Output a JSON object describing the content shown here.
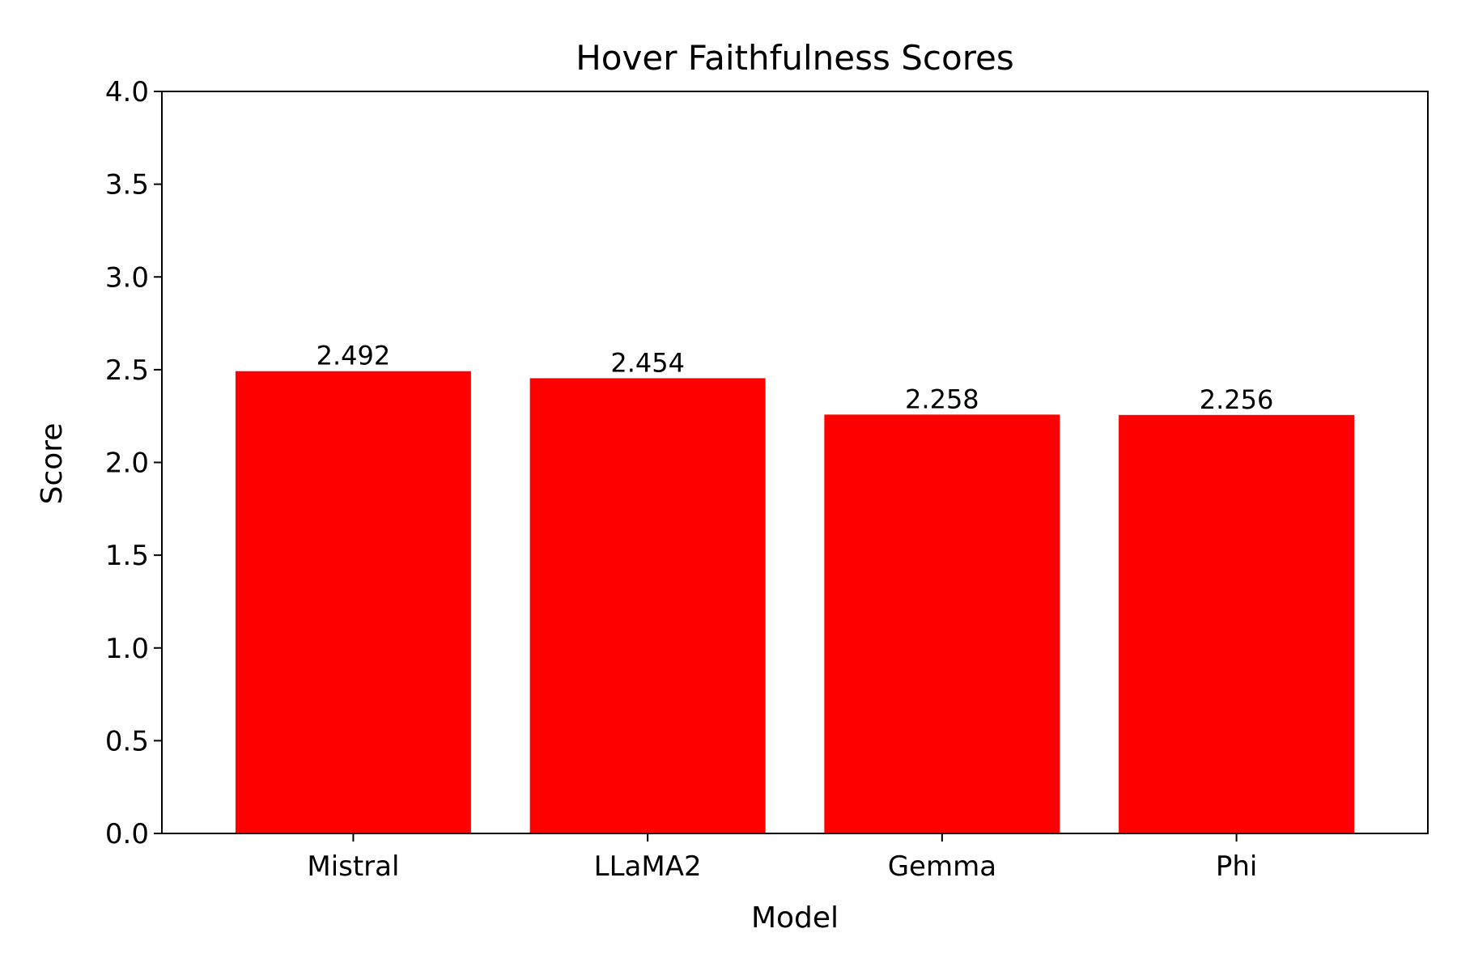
{
  "chart_data": {
    "type": "bar",
    "title": "Hover Faithfulness Scores",
    "xlabel": "Model",
    "ylabel": "Score",
    "categories": [
      "Mistral",
      "LLaMA2",
      "Gemma",
      "Phi"
    ],
    "values": [
      2.492,
      2.454,
      2.258,
      2.256
    ],
    "value_labels": [
      "2.492",
      "2.454",
      "2.258",
      "2.256"
    ],
    "ylim": [
      0,
      4.0
    ],
    "yticks": [
      0.0,
      0.5,
      1.0,
      1.5,
      2.0,
      2.5,
      3.0,
      3.5,
      4.0
    ],
    "ytick_labels": [
      "0.0",
      "0.5",
      "1.0",
      "1.5",
      "2.0",
      "2.5",
      "3.0",
      "3.5",
      "4.0"
    ],
    "bar_color": "#ff0000",
    "grid": false,
    "legend": "none"
  }
}
